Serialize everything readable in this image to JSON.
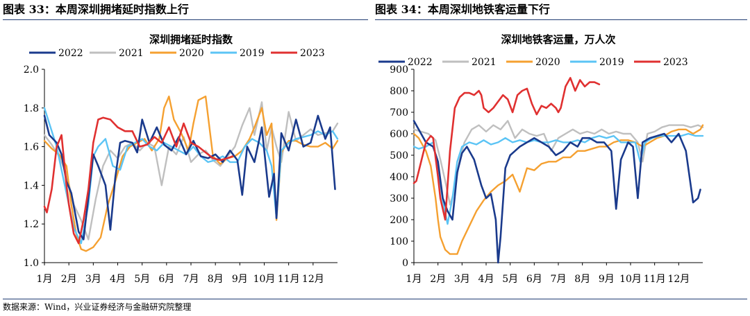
{
  "left_panel": {
    "heading": "图表 33：本周深圳拥堵延时指数上行"
  },
  "right_panel": {
    "heading": "图表 34：本周深圳地铁客运量下行"
  },
  "source": "数据来源：Wind，兴业证券经济与金融研究院整理",
  "colors": {
    "2022": "#1a3a8c",
    "2021": "#bfbfbf",
    "2020": "#f5a030",
    "2019": "#5bc4f5",
    "2023": "#e03030"
  },
  "chart_data": [
    {
      "type": "line",
      "title": "深圳拥堵延时指数",
      "xlabel": "",
      "ylabel": "",
      "x_ticks": [
        "1月",
        "2月",
        "3月",
        "4月",
        "5月",
        "6月",
        "7月",
        "8月",
        "9月",
        "10月",
        "11月",
        "12月"
      ],
      "y_ticks": [
        "1.0",
        "1.2",
        "1.4",
        "1.6",
        "1.8",
        "2.0"
      ],
      "ylim": [
        1.0,
        2.0
      ],
      "xlim": [
        1,
        13
      ],
      "legend_position": "top",
      "grid": false,
      "series": [
        {
          "name": "2022",
          "x": [
            1.0,
            1.2,
            1.5,
            1.7,
            1.9,
            2.1,
            2.4,
            2.6,
            2.8,
            3.0,
            3.2,
            3.5,
            3.7,
            3.9,
            4.1,
            4.3,
            4.6,
            4.8,
            5.0,
            5.3,
            5.6,
            5.9,
            6.2,
            6.5,
            6.8,
            7.1,
            7.4,
            7.7,
            8.0,
            8.3,
            8.6,
            8.9,
            9.1,
            9.3,
            9.6,
            9.9,
            10.2,
            10.4,
            10.5,
            10.7,
            11.0,
            11.3,
            11.6,
            11.9,
            12.2,
            12.5,
            12.7,
            12.9
          ],
          "y": [
            1.76,
            1.66,
            1.62,
            1.56,
            1.42,
            1.36,
            1.16,
            1.12,
            1.34,
            1.56,
            1.5,
            1.4,
            1.17,
            1.44,
            1.62,
            1.63,
            1.62,
            1.57,
            1.74,
            1.62,
            1.7,
            1.61,
            1.58,
            1.65,
            1.56,
            1.63,
            1.55,
            1.54,
            1.56,
            1.52,
            1.58,
            1.53,
            1.35,
            1.6,
            1.52,
            1.7,
            1.34,
            1.46,
            1.23,
            1.67,
            1.58,
            1.74,
            1.6,
            1.62,
            1.76,
            1.64,
            1.7,
            1.38
          ]
        },
        {
          "name": "2021",
          "x": [
            1.0,
            1.3,
            1.6,
            1.9,
            2.2,
            2.5,
            2.8,
            3.1,
            3.4,
            3.7,
            4.0,
            4.3,
            4.6,
            4.9,
            5.2,
            5.5,
            5.8,
            6.1,
            6.4,
            6.7,
            7.0,
            7.3,
            7.6,
            7.9,
            8.2,
            8.5,
            8.8,
            9.1,
            9.4,
            9.6,
            9.9,
            10.1,
            10.3,
            10.5,
            10.7,
            11.0,
            11.3,
            11.6,
            11.9,
            12.2,
            12.5,
            12.8,
            13.0
          ],
          "y": [
            1.66,
            1.61,
            1.55,
            1.46,
            1.3,
            1.22,
            1.12,
            1.33,
            1.5,
            1.58,
            1.54,
            1.6,
            1.62,
            1.58,
            1.62,
            1.6,
            1.4,
            1.6,
            1.56,
            1.65,
            1.52,
            1.56,
            1.58,
            1.53,
            1.5,
            1.55,
            1.6,
            1.71,
            1.8,
            1.66,
            1.83,
            1.58,
            1.7,
            1.6,
            1.52,
            1.78,
            1.63,
            1.66,
            1.69,
            1.66,
            1.67,
            1.68,
            1.72
          ]
        },
        {
          "name": "2020",
          "x": [
            1.0,
            1.3,
            1.6,
            1.9,
            2.1,
            2.3,
            2.5,
            2.7,
            3.0,
            3.3,
            3.6,
            3.9,
            4.2,
            4.5,
            4.8,
            5.1,
            5.4,
            5.7,
            5.9,
            6.1,
            6.3,
            6.6,
            6.9,
            7.1,
            7.3,
            7.6,
            7.9,
            8.2,
            8.5,
            8.8,
            9.1,
            9.4,
            9.6,
            9.9,
            10.1,
            10.3,
            10.5,
            10.7,
            11.0,
            11.3,
            11.6,
            11.9,
            12.2,
            12.5,
            12.8,
            13.0
          ],
          "y": [
            1.63,
            1.59,
            1.56,
            1.5,
            1.3,
            1.15,
            1.07,
            1.06,
            1.08,
            1.13,
            1.3,
            1.42,
            1.55,
            1.6,
            1.62,
            1.64,
            1.58,
            1.64,
            1.8,
            1.86,
            1.74,
            1.67,
            1.58,
            1.72,
            1.84,
            1.86,
            1.55,
            1.51,
            1.54,
            1.55,
            1.58,
            1.64,
            1.7,
            1.8,
            1.66,
            1.72,
            1.22,
            1.57,
            1.63,
            1.63,
            1.61,
            1.6,
            1.6,
            1.62,
            1.59,
            1.63
          ]
        },
        {
          "name": "2019",
          "x": [
            1.0,
            1.2,
            1.5,
            1.8,
            2.0,
            2.2,
            2.5,
            2.8,
            3.0,
            3.2,
            3.5,
            3.8,
            4.1,
            4.4,
            4.7,
            5.0,
            5.3,
            5.6,
            5.9,
            6.2,
            6.5,
            6.8,
            7.1,
            7.4,
            7.7,
            8.0,
            8.3,
            8.6,
            8.9,
            9.2,
            9.5,
            9.8,
            10.1,
            10.3,
            10.5,
            10.7,
            11.0,
            11.3,
            11.6,
            11.9,
            12.2,
            12.5,
            12.8,
            13.0
          ],
          "y": [
            1.8,
            1.72,
            1.6,
            1.42,
            1.3,
            1.18,
            1.1,
            1.3,
            1.55,
            1.6,
            1.64,
            1.5,
            1.48,
            1.6,
            1.62,
            1.64,
            1.6,
            1.58,
            1.62,
            1.6,
            1.58,
            1.56,
            1.6,
            1.55,
            1.52,
            1.53,
            1.55,
            1.52,
            1.52,
            1.6,
            1.64,
            1.62,
            1.58,
            1.5,
            1.23,
            1.58,
            1.62,
            1.64,
            1.65,
            1.66,
            1.68,
            1.66,
            1.68,
            1.64
          ]
        },
        {
          "name": "2023",
          "x": [
            1.0,
            1.1,
            1.3,
            1.5,
            1.7,
            1.9,
            2.0,
            2.2,
            2.4,
            2.6,
            2.8,
            3.0,
            3.2,
            3.4,
            3.7,
            4.0,
            4.3,
            4.6,
            4.9,
            5.2,
            5.5,
            5.8,
            6.1,
            6.4,
            6.7,
            7.0,
            7.3,
            7.6,
            7.9,
            8.2,
            8.5,
            8.7
          ],
          "y": [
            1.29,
            1.26,
            1.38,
            1.6,
            1.66,
            1.4,
            1.3,
            1.15,
            1.1,
            1.22,
            1.38,
            1.62,
            1.74,
            1.75,
            1.74,
            1.7,
            1.68,
            1.68,
            1.6,
            1.61,
            1.65,
            1.62,
            1.7,
            1.6,
            1.72,
            1.62,
            1.6,
            1.57,
            1.54,
            1.53,
            1.54,
            1.55
          ]
        }
      ]
    },
    {
      "type": "line",
      "title": "深圳地铁客运量，万人次",
      "xlabel": "",
      "ylabel": "",
      "x_ticks": [
        "1月",
        "2月",
        "3月",
        "4月",
        "5月",
        "6月",
        "7月",
        "8月",
        "9月",
        "10月",
        "11月",
        "12月"
      ],
      "y_ticks": [
        "0",
        "100",
        "200",
        "300",
        "400",
        "500",
        "600",
        "700",
        "800",
        "900"
      ],
      "ylim": [
        0,
        900
      ],
      "xlim": [
        1,
        13
      ],
      "legend_position": "top",
      "grid": false,
      "series": [
        {
          "name": "2022",
          "x": [
            1.0,
            1.2,
            1.5,
            1.8,
            2.0,
            2.2,
            2.4,
            2.6,
            2.8,
            3.0,
            3.2,
            3.5,
            3.8,
            4.0,
            4.2,
            4.4,
            4.5,
            4.6,
            4.8,
            5.0,
            5.2,
            5.4,
            5.7,
            6.0,
            6.3,
            6.6,
            6.9,
            7.2,
            7.5,
            7.8,
            8.0,
            8.3,
            8.6,
            8.9,
            9.2,
            9.4,
            9.6,
            9.9,
            10.1,
            10.3,
            10.5,
            10.8,
            11.1,
            11.4,
            11.7,
            12.0,
            12.3,
            12.6,
            12.8,
            12.9
          ],
          "y": [
            660,
            620,
            560,
            540,
            470,
            300,
            240,
            200,
            420,
            510,
            540,
            480,
            360,
            300,
            320,
            200,
            0,
            120,
            440,
            500,
            520,
            540,
            560,
            580,
            560,
            540,
            500,
            520,
            560,
            540,
            580,
            580,
            560,
            560,
            520,
            250,
            480,
            560,
            540,
            300,
            560,
            580,
            590,
            600,
            560,
            600,
            520,
            280,
            300,
            340
          ]
        },
        {
          "name": "2021",
          "x": [
            1.0,
            1.3,
            1.6,
            1.9,
            2.1,
            2.3,
            2.5,
            2.7,
            2.9,
            3.1,
            3.4,
            3.7,
            4.0,
            4.3,
            4.6,
            4.9,
            5.2,
            5.5,
            5.8,
            6.1,
            6.4,
            6.7,
            7.0,
            7.3,
            7.6,
            7.9,
            8.2,
            8.5,
            8.8,
            9.1,
            9.4,
            9.7,
            10.0,
            10.3,
            10.5,
            10.7,
            11.0,
            11.3,
            11.6,
            11.9,
            12.2,
            12.5,
            12.8,
            13.0
          ],
          "y": [
            620,
            610,
            600,
            570,
            480,
            380,
            270,
            340,
            480,
            560,
            620,
            640,
            610,
            640,
            620,
            660,
            580,
            620,
            600,
            590,
            600,
            520,
            580,
            600,
            620,
            600,
            610,
            600,
            620,
            600,
            610,
            600,
            600,
            560,
            470,
            600,
            610,
            630,
            640,
            640,
            640,
            630,
            640,
            630
          ]
        },
        {
          "name": "2020",
          "x": [
            1.0,
            1.2,
            1.5,
            1.7,
            1.9,
            2.0,
            2.1,
            2.3,
            2.5,
            2.8,
            3.0,
            3.3,
            3.6,
            3.9,
            4.2,
            4.5,
            4.8,
            5.1,
            5.4,
            5.7,
            6.0,
            6.3,
            6.6,
            6.9,
            7.2,
            7.5,
            7.8,
            8.1,
            8.4,
            8.7,
            9.0,
            9.3,
            9.6,
            9.9,
            10.2,
            10.5,
            10.8,
            11.1,
            11.4,
            11.7,
            12.0,
            12.3,
            12.6,
            12.9,
            13.0
          ],
          "y": [
            600,
            580,
            520,
            450,
            300,
            200,
            120,
            60,
            40,
            40,
            100,
            170,
            240,
            290,
            330,
            360,
            380,
            410,
            330,
            440,
            430,
            460,
            470,
            470,
            490,
            490,
            520,
            520,
            530,
            540,
            540,
            560,
            570,
            570,
            560,
            540,
            560,
            580,
            590,
            610,
            620,
            620,
            600,
            620,
            640
          ]
        },
        {
          "name": "2019",
          "x": [
            1.0,
            1.2,
            1.5,
            1.8,
            2.0,
            2.2,
            2.4,
            2.6,
            2.8,
            3.0,
            3.3,
            3.6,
            3.9,
            4.2,
            4.5,
            4.8,
            5.1,
            5.4,
            5.7,
            6.0,
            6.3,
            6.6,
            6.9,
            7.2,
            7.5,
            7.8,
            8.1,
            8.4,
            8.7,
            9.0,
            9.3,
            9.6,
            9.9,
            10.2,
            10.4,
            10.6,
            10.9,
            11.2,
            11.5,
            11.8,
            12.1,
            12.4,
            12.7,
            13.0
          ],
          "y": [
            540,
            530,
            540,
            560,
            440,
            290,
            180,
            300,
            470,
            540,
            560,
            550,
            570,
            550,
            560,
            580,
            560,
            570,
            560,
            570,
            560,
            560,
            570,
            560,
            560,
            570,
            560,
            580,
            590,
            580,
            590,
            560,
            560,
            560,
            470,
            560,
            580,
            590,
            590,
            590,
            590,
            600,
            590,
            590
          ]
        },
        {
          "name": "2023",
          "x": [
            1.0,
            1.1,
            1.3,
            1.5,
            1.7,
            1.8,
            2.0,
            2.1,
            2.3,
            2.5,
            2.7,
            2.9,
            3.1,
            3.3,
            3.5,
            3.7,
            3.8,
            3.9,
            4.1,
            4.3,
            4.5,
            4.7,
            4.9,
            5.1,
            5.3,
            5.5,
            5.7,
            5.9,
            6.1,
            6.3,
            6.5,
            6.7,
            6.9,
            7.0,
            7.1,
            7.3,
            7.5,
            7.7,
            7.9,
            8.1,
            8.3,
            8.5,
            8.7
          ],
          "y": [
            370,
            380,
            470,
            560,
            590,
            580,
            400,
            300,
            200,
            520,
            720,
            770,
            790,
            790,
            780,
            800,
            780,
            720,
            700,
            720,
            750,
            780,
            760,
            700,
            780,
            800,
            810,
            740,
            690,
            730,
            720,
            740,
            720,
            700,
            720,
            820,
            860,
            800,
            850,
            820,
            840,
            840,
            830
          ]
        }
      ]
    }
  ]
}
